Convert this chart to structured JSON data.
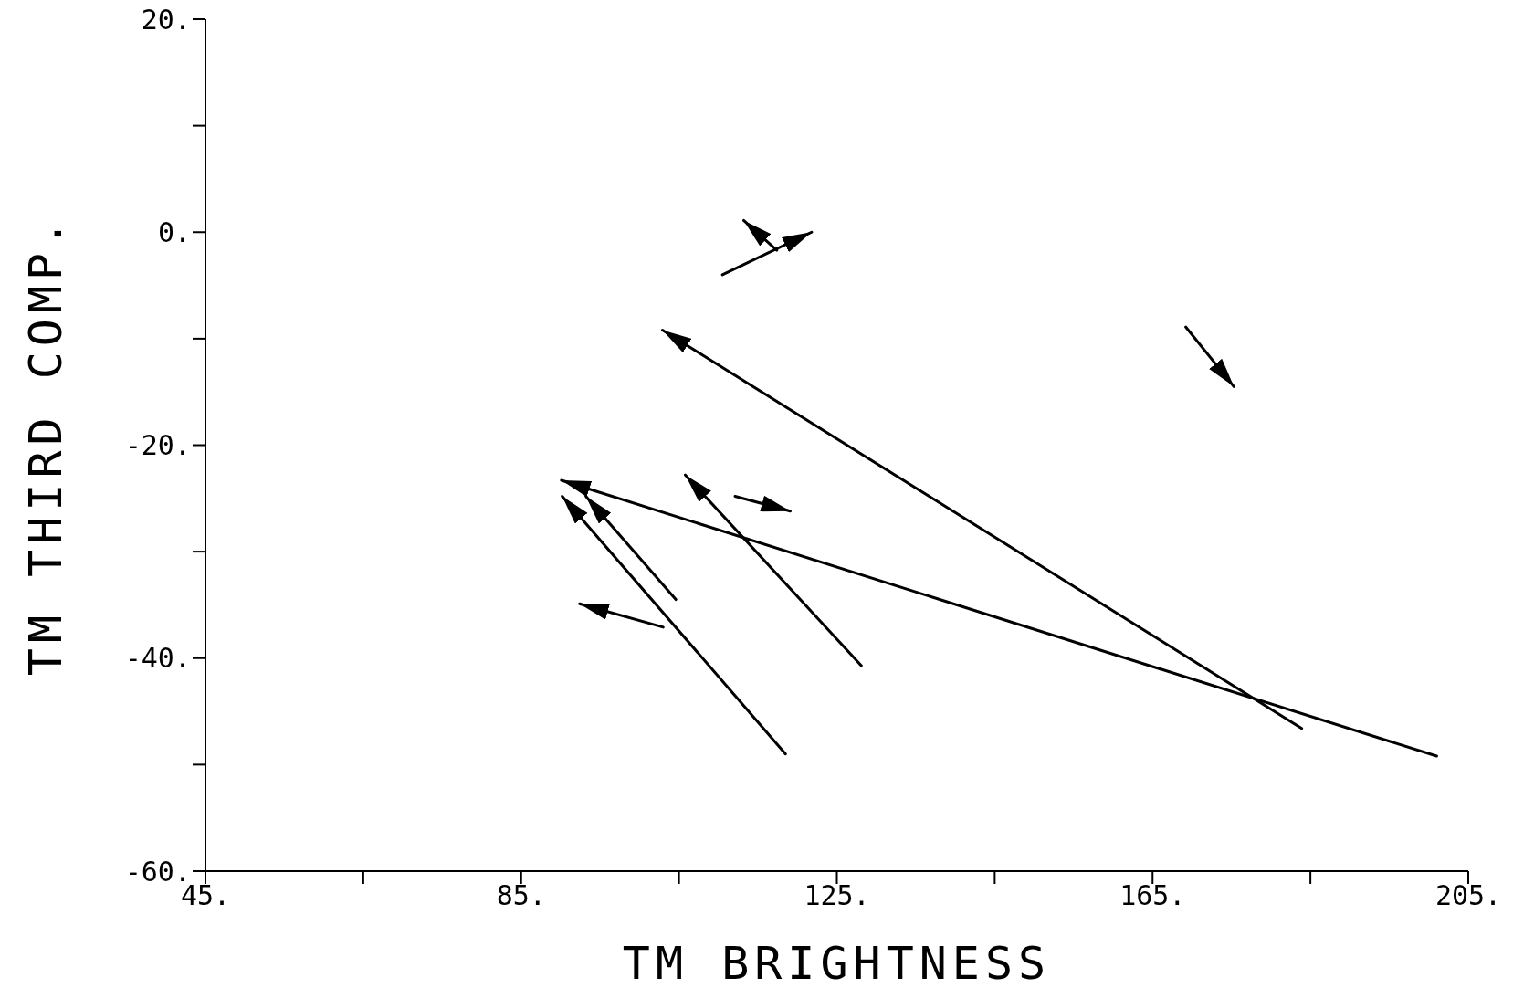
{
  "chart_data": {
    "type": "line",
    "xlabel": "TM BRIGHTNESS",
    "ylabel": "TM THIRD COMP.",
    "xlim": [
      45,
      205
    ],
    "ylim": [
      -60,
      20
    ],
    "xticks": [
      {
        "value": 45,
        "label": "45."
      },
      {
        "value": 65,
        "label": null
      },
      {
        "value": 85,
        "label": "85."
      },
      {
        "value": 105,
        "label": null
      },
      {
        "value": 125,
        "label": "125."
      },
      {
        "value": 145,
        "label": null
      },
      {
        "value": 165,
        "label": "165."
      },
      {
        "value": 185,
        "label": null
      },
      {
        "value": 205,
        "label": "205."
      }
    ],
    "yticks": [
      {
        "value": -60,
        "label": "-60."
      },
      {
        "value": -50,
        "label": null
      },
      {
        "value": -40,
        "label": "-40."
      },
      {
        "value": -30,
        "label": null
      },
      {
        "value": -20,
        "label": "-20."
      },
      {
        "value": -10,
        "label": null
      },
      {
        "value": 0,
        "label": "0."
      },
      {
        "value": 10,
        "label": null
      },
      {
        "value": 20,
        "label": "20."
      }
    ],
    "grid": false,
    "series": [
      {
        "color": "#000000",
        "x": [
          110.5,
          121.8
        ],
        "values": [
          -4.0,
          0.0
        ]
      },
      {
        "color": "#000000",
        "x": [
          117.4,
          113.2
        ],
        "values": [
          -1.7,
          1.1
        ]
      },
      {
        "color": "#000000",
        "x": [
          183.9,
          102.9
        ],
        "values": [
          -46.6,
          -9.2
        ]
      },
      {
        "color": "#000000",
        "x": [
          169.2,
          175.3
        ],
        "values": [
          -8.9,
          -14.5
        ]
      },
      {
        "color": "#000000",
        "x": [
          201.0,
          90.1
        ],
        "values": [
          -49.2,
          -23.3
        ]
      },
      {
        "color": "#000000",
        "x": [
          128.1,
          105.8
        ],
        "values": [
          -40.7,
          -22.8
        ]
      },
      {
        "color": "#000000",
        "x": [
          112.1,
          119.1
        ],
        "values": [
          -24.8,
          -26.2
        ]
      },
      {
        "color": "#000000",
        "x": [
          104.6,
          93.2
        ],
        "values": [
          -34.5,
          -24.8
        ]
      },
      {
        "color": "#000000",
        "x": [
          118.5,
          90.2
        ],
        "values": [
          -49.0,
          -24.8
        ]
      },
      {
        "color": "#000000",
        "x": [
          103.0,
          92.4
        ],
        "values": [
          -37.1,
          -34.9
        ]
      }
    ]
  }
}
